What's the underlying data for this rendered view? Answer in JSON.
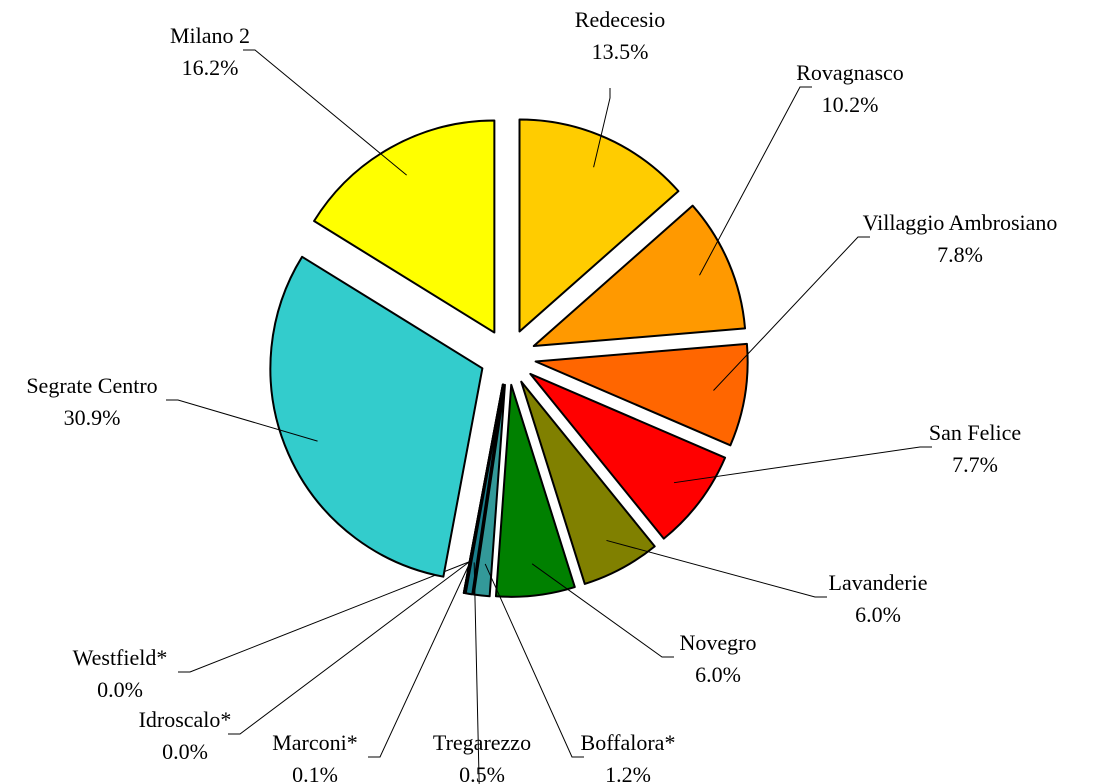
{
  "chart_data": {
    "type": "pie",
    "categories": [
      "Redecesio",
      "Rovagnasco",
      "Villaggio Ambrosiano",
      "San Felice",
      "Lavanderie",
      "Novegro",
      "Boffalora*",
      "Tregarezzo",
      "Marconi*",
      "Idroscalo*",
      "Westfield*",
      "Segrate Centro",
      "Milano 2"
    ],
    "values": [
      13.5,
      10.2,
      7.8,
      7.7,
      6.0,
      6.0,
      1.2,
      0.5,
      0.1,
      0.0,
      0.0,
      30.9,
      16.2
    ],
    "value_labels": [
      "13.5%",
      "10.2%",
      "7.8%",
      "7.7%",
      "6.0%",
      "6.0%",
      "1.2%",
      "0.5%",
      "0.1%",
      "0.0%",
      "0.0%",
      "30.9%",
      "16.2%"
    ],
    "colors": [
      "#ffcc00",
      "#ff9900",
      "#ff6600",
      "#ff0000",
      "#808000",
      "#008000",
      "#339999",
      "#1a7f8c",
      "#66cc33",
      "#99cc00",
      "#3366cc",
      "#33cccc",
      "#ffff00"
    ]
  }
}
